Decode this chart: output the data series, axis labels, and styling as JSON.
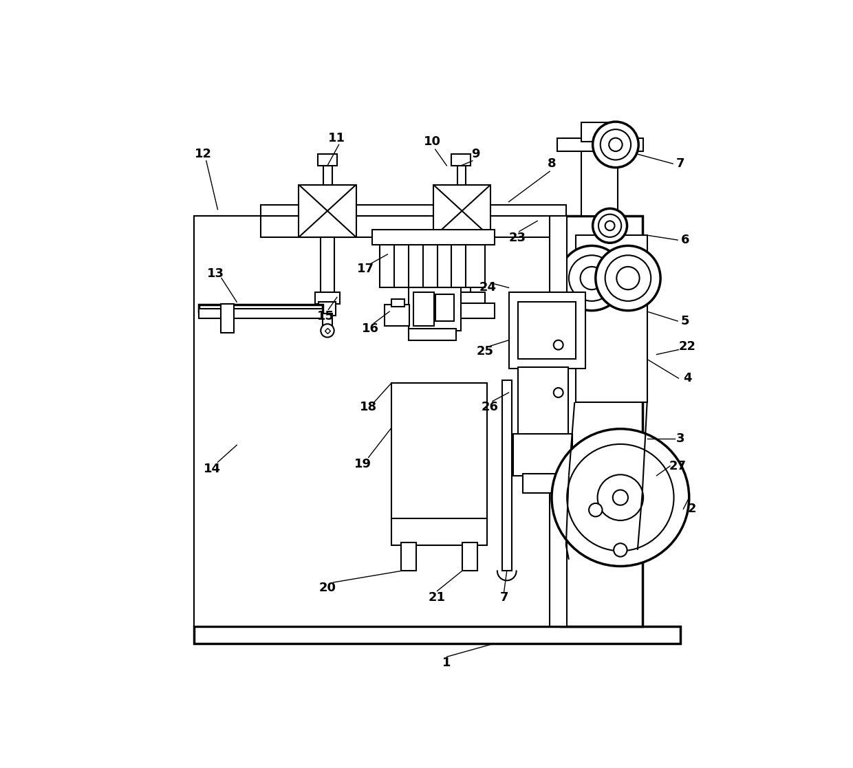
{
  "bg_color": "#ffffff",
  "lc": "#000000",
  "lw": 1.5,
  "blw": 2.5,
  "fs": 13,
  "fig_w": 12.4,
  "fig_h": 11.17,
  "dpi": 100
}
